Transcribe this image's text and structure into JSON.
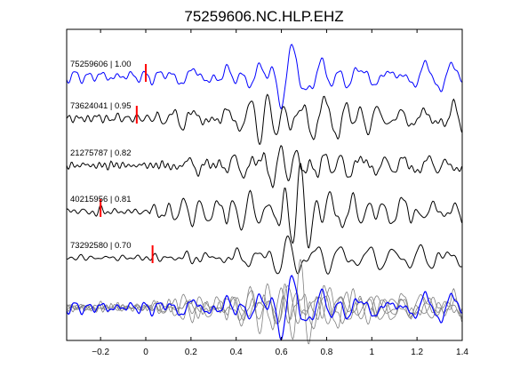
{
  "chart_data": {
    "type": "line",
    "title": "75259606.NC.HLP.EHZ",
    "xlabel": "",
    "ylabel": "",
    "xlim": [
      -0.35,
      1.4
    ],
    "xticks": [
      -0.2,
      0,
      0.2,
      0.4,
      0.6,
      0.8,
      1,
      1.2,
      1.4
    ],
    "xtick_labels": [
      "−0.2",
      "0",
      "0.2",
      "0.4",
      "0.6",
      "0.8",
      "1",
      "1.2",
      "1.4"
    ],
    "grid": false,
    "series": [
      {
        "name": "75259606 | 1.00",
        "color": "#0000ff",
        "pick": 0.0,
        "seed": 11,
        "onset": 0.02
      },
      {
        "name": "73624041 | 0.95",
        "color": "#000000",
        "pick": -0.04,
        "seed": 23,
        "onset": 0.05
      },
      {
        "name": "21275787 | 0.82",
        "color": "#000000",
        "pick": null,
        "seed": 37,
        "onset": 0.1
      },
      {
        "name": "40215956 | 0.81",
        "color": "#000000",
        "pick": -0.2,
        "seed": 41,
        "onset": 0.02
      },
      {
        "name": "73292580 | 0.70",
        "color": "#000000",
        "pick": 0.03,
        "seed": 53,
        "onset": 0.08
      }
    ],
    "stack": {
      "label": "",
      "colors": [
        "#0000ff",
        "#808080"
      ]
    },
    "pick_color": "#ff0000"
  }
}
